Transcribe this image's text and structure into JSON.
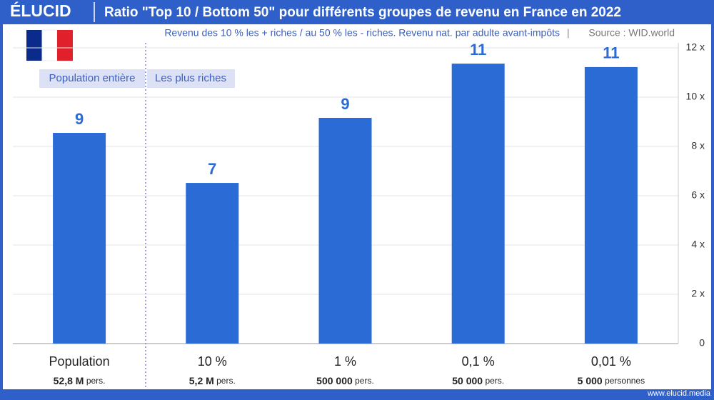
{
  "brand": "ÉLUCID",
  "footer": "www.elucid.media",
  "chart_data": {
    "type": "bar",
    "title": "Ratio \"Top 10 / Bottom 50\" pour différents groupes de revenu en France en 2022",
    "subtitle": "Revenu des 10 % les + riches / au 50 % les - riches. Revenu nat. par adulte avant-impôts",
    "source": "Source : WID.world",
    "group_labels": [
      "Population entière",
      "Les plus riches"
    ],
    "categories": [
      "Population",
      "10 %",
      "1 %",
      "0,1 %",
      "0,01 %"
    ],
    "category_counts": [
      "52,8 M",
      "5,2 M",
      "500 000",
      "50 000",
      "5 000"
    ],
    "category_units": [
      "pers.",
      "pers.",
      "pers.",
      "pers.",
      "personnes"
    ],
    "values": [
      8.55,
      6.52,
      9.16,
      11.36,
      11.22
    ],
    "value_labels": [
      "9",
      "7",
      "9",
      "11",
      "11"
    ],
    "color": "#2a6bd6",
    "ylim": [
      0,
      12
    ],
    "yticks": [
      0,
      {
        "value": 2,
        "label": "2 x"
      },
      {
        "value": 4,
        "label": "4 x"
      },
      {
        "value": 6,
        "label": "6 x"
      },
      {
        "value": 8,
        "label": "8 x"
      },
      {
        "value": 10,
        "label": "10 x"
      },
      {
        "value": 12,
        "label": "12 x"
      }
    ],
    "grid": true
  }
}
